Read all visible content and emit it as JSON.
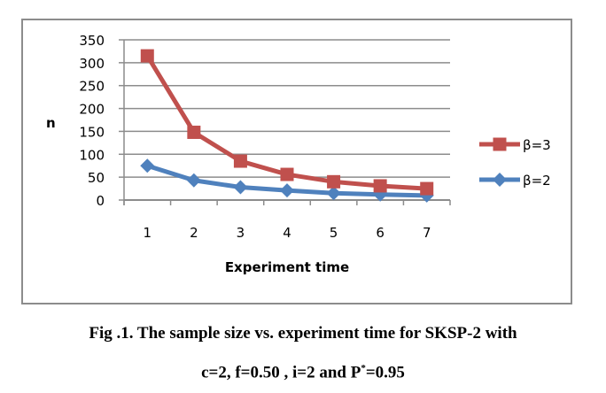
{
  "chart_data": {
    "type": "line",
    "title": "",
    "xlabel": "Experiment time",
    "ylabel": "n",
    "categories": [
      "1",
      "2",
      "3",
      "4",
      "5",
      "6",
      "7"
    ],
    "yticks": [
      "0",
      "50",
      "100",
      "150",
      "200",
      "250",
      "300",
      "350"
    ],
    "ylim": [
      0,
      350
    ],
    "grid": true,
    "legend_position": "right",
    "series": [
      {
        "name": "β=3",
        "marker": "square",
        "color": "#C0504D",
        "values": [
          315,
          148,
          85,
          56,
          40,
          31,
          25
        ]
      },
      {
        "name": "β=2",
        "marker": "diamond",
        "color": "#4F81BD",
        "values": [
          75,
          43,
          28,
          21,
          15,
          12,
          10
        ]
      }
    ]
  },
  "caption": {
    "line1": "Fig .1. The  sample size vs. experiment time for SKSP-2 with",
    "line2_prefix": "c=2, f=0.50 , i=2 and P",
    "line2_sup": "*",
    "line2_suffix": "=0.95"
  }
}
